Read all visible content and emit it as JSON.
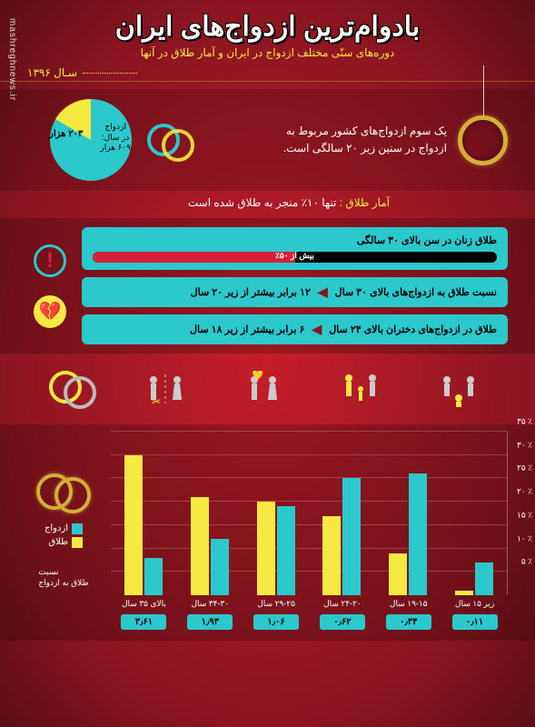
{
  "watermark": "mashreghnews.ir",
  "header": {
    "title": "بادوام‌ترین ازدواج‌های ایران",
    "subtitle": "دوره‌های سنّی مختلف ازدواج در ایران و آمار طلاق در آنها",
    "year": "سـال ۱۳۹۶"
  },
  "pie": {
    "total_label": "ازدواج\nدر سال:\n۶۰۹ هزار",
    "slice_label": "۲۰۳ هزار",
    "slice_percent": 33,
    "colors": {
      "main": "#2bc8cc",
      "slice": "#f5e942"
    }
  },
  "section1": {
    "text": "یک سوم ازدواج‌های کشور مربوط به\nازدواج در سنین زیر ۲۰ سالگی است."
  },
  "divorce_note": {
    "label": "آمار طلاق :",
    "text": "تنها ۱۰٪ منجر به طلاق شده است"
  },
  "stats": [
    {
      "type": "bar",
      "title": "طلاق زنان در سن بالای ۳۰ سالگی",
      "bar_label": "بیش از ۵۰٪",
      "bar_percent": 50
    },
    {
      "type": "arrow",
      "right": "نسبت طلاق به ازدواج‌های بالای ۳۰ سال",
      "left": "۱۲ برابر بیشتر از زیر ۲۰ سال"
    },
    {
      "type": "arrow",
      "right": "طلاق در ازدواج‌های دختران بالای ۲۴ سال",
      "left": "۶ برابر بیشتر از زیر ۱۸ سال"
    }
  ],
  "chart": {
    "ymax": 35,
    "ytick_step": 5,
    "y_suffix": "٪",
    "categories": [
      "زیر ۱۵ سال",
      "۱۹-۱۵ سال",
      "۲۴-۲۰ سال",
      "۲۹-۲۵ سال",
      "۳۴-۳۰ سال",
      "بالای ۳۵ سال"
    ],
    "series": [
      {
        "name": "ازدواج",
        "color": "#2bc8cc",
        "values": [
          7,
          26,
          25,
          19,
          12,
          8
        ]
      },
      {
        "name": "طلاق",
        "color": "#f5e942",
        "values": [
          1,
          9,
          17,
          20,
          21,
          30
        ]
      }
    ],
    "ratios": [
      "۰٫۱۱",
      "۰٫۳۴",
      "۰٫۶۲",
      "۱٫۰۶",
      "۱٫۹۳",
      "۳٫۶۱"
    ],
    "ratio_label": "نسبت\nطلاق به ازدواج",
    "legend": {
      "marriage": "ازدواج",
      "divorce": "طلاق"
    }
  }
}
